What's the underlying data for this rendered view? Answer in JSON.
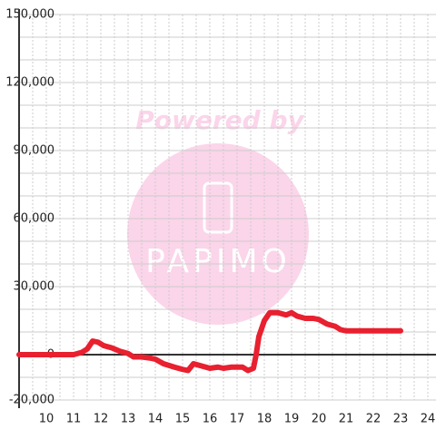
{
  "chart_data": {
    "type": "line",
    "watermark": "Powered by",
    "logo": "PAPIMO",
    "x": [
      9,
      11,
      11.3,
      11.5,
      11.7,
      11.9,
      12.1,
      12.4,
      12.7,
      13,
      13.2,
      13.5,
      13.8,
      14,
      14.3,
      14.7,
      15,
      15.2,
      15.4,
      15.7,
      16,
      16.3,
      16.5,
      16.8,
      17,
      17.2,
      17.4,
      17.6,
      17.7,
      17.8,
      18,
      18.2,
      18.5,
      18.8,
      19,
      19.2,
      19.5,
      19.8,
      20,
      20.3,
      20.6,
      20.8,
      21,
      22,
      23
    ],
    "series": [
      {
        "color": "#e8202f",
        "values": [
          0,
          0,
          1000,
          2500,
          6000,
          5500,
          4000,
          3000,
          1500,
          500,
          -1000,
          -1000,
          -1500,
          -2000,
          -4000,
          -5500,
          -6500,
          -7000,
          -4000,
          -5000,
          -6000,
          -5500,
          -6000,
          -5500,
          -5500,
          -5500,
          -7000,
          -6000,
          0,
          8000,
          15000,
          18500,
          18500,
          17500,
          18500,
          17000,
          16000,
          16000,
          15500,
          13500,
          12500,
          11000,
          10500,
          10500,
          10500
        ]
      }
    ],
    "xlim": [
      9,
      24.3
    ],
    "ylim": [
      -20000,
      150000
    ],
    "xticks": [
      10,
      11,
      12,
      13,
      14,
      15,
      16,
      17,
      18,
      19,
      20,
      21,
      22,
      23,
      24
    ],
    "yticks": [
      {
        "value": -20000,
        "label": "-20,000"
      },
      0,
      {
        "value": 30000,
        "label": "30,000"
      },
      {
        "value": 60000,
        "label": "60,000"
      },
      {
        "value": 90000,
        "label": "90,000"
      },
      {
        "value": 120000,
        "label": "120,000"
      },
      {
        "value": 150000,
        "label": "150,000"
      }
    ],
    "ygrid": [
      -10000,
      10000,
      20000,
      40000,
      50000,
      70000,
      80000,
      100000,
      110000,
      130000,
      140000
    ],
    "xgrid": [
      9.5,
      10.5,
      11.5,
      12.5,
      13.5,
      14.5,
      15.5,
      16.5,
      17.5,
      18.5,
      19.5,
      20.5,
      21.5,
      22.5,
      23.5
    ],
    "grid": true
  }
}
